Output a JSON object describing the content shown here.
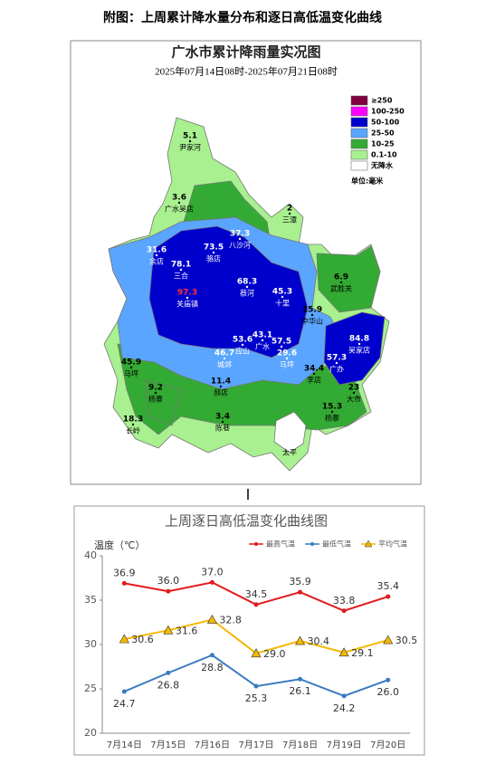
{
  "header": {
    "title": "附图：上周累计降水量分布和逐日高低温变化曲线"
  },
  "map": {
    "title": "广水市累计降雨量实况图",
    "subtitle": "2025年07月14日08时-2025年07月21日08时",
    "legend": [
      {
        "label": "≥250",
        "color": "#800040"
      },
      {
        "label": "100-250",
        "color": "#ff00ff"
      },
      {
        "label": "50-100",
        "color": "#0000cc"
      },
      {
        "label": "25-50",
        "color": "#5aa5ff"
      },
      {
        "label": "10-25",
        "color": "#33aa33"
      },
      {
        "label": "0.1-10",
        "color": "#a8f090"
      },
      {
        "label": "无降水",
        "color": "#ffffff"
      }
    ],
    "unit": "单位:毫米",
    "stations": [
      {
        "value": 5.1,
        "name": "尹家河"
      },
      {
        "value": 3.6,
        "name": "广水吴店"
      },
      {
        "value": 2,
        "name": "三潭"
      },
      {
        "value": 37.3,
        "name": "八沙河"
      },
      {
        "value": 31.6,
        "name": "余店"
      },
      {
        "value": 78.1,
        "name": "三合"
      },
      {
        "value": 73.5,
        "name": "骆店"
      },
      {
        "value": 97.3,
        "name": "关庙镇"
      },
      {
        "value": 68.3,
        "name": "蔡河"
      },
      {
        "value": 45.3,
        "name": "十里"
      },
      {
        "value": 6.9,
        "name": "武胜关"
      },
      {
        "value": 15.9,
        "name": "中华山"
      },
      {
        "value": 84.8,
        "name": "吴家店"
      },
      {
        "value": 57.3,
        "name": "广办"
      },
      {
        "value": 43.1,
        "name": "广水"
      },
      {
        "value": 53.6,
        "name": "应山"
      },
      {
        "value": 46.7,
        "name": "城郊"
      },
      {
        "value": 57.5
      },
      {
        "value": 29.6,
        "name": "马坪"
      },
      {
        "value": 34.4,
        "name": "李店"
      },
      {
        "value": 45.9,
        "name": "马坪"
      },
      {
        "value": 9.2,
        "name": "杨寨"
      },
      {
        "value": 11.4,
        "name": "郝店"
      },
      {
        "value": 3.4,
        "name": "陈巷"
      },
      {
        "value": 15.3,
        "name": "杨寨"
      },
      {
        "value": 23,
        "name": "大市"
      },
      {
        "value": 18.3,
        "name": "长岭"
      },
      {
        "name": "太平"
      }
    ]
  },
  "chart_data": {
    "type": "line",
    "title": "上周逐日高低温变化曲线图",
    "y_axis_label": "温度（℃）",
    "categories": [
      "7月14日",
      "7月15日",
      "7月16日",
      "7月17日",
      "7月18日",
      "7月19日",
      "7月20日"
    ],
    "series": [
      {
        "name": "最高气温",
        "color": "#e31a1c",
        "marker": "circle",
        "values": [
          36.9,
          36.0,
          37.0,
          34.5,
          35.9,
          33.8,
          35.4
        ],
        "value_labels": [
          "36.9",
          "36.0",
          "37.0",
          "34.5",
          "35.9",
          "33.8",
          "35.4"
        ]
      },
      {
        "name": "最低气温",
        "color": "#3a7bbf",
        "marker": "circle",
        "values": [
          24.7,
          26.8,
          28.8,
          25.3,
          26.1,
          24.2,
          26.0
        ],
        "value_labels": [
          "24.7",
          "26.8",
          "28.8",
          "25.3",
          "26.1",
          "24.2",
          "26.0"
        ]
      },
      {
        "name": "平均气温",
        "color": "#f5b800",
        "marker": "triangle",
        "values": [
          30.6,
          31.6,
          32.8,
          29.0,
          30.4,
          29.1,
          30.5
        ],
        "value_labels": [
          "30.6",
          "31.6",
          "32.8",
          "29.0",
          "30.4",
          "29.1",
          "30.5"
        ]
      }
    ],
    "ylim": [
      20,
      40
    ],
    "yticks": [
      20,
      25,
      30,
      35,
      40
    ],
    "grid": false
  }
}
